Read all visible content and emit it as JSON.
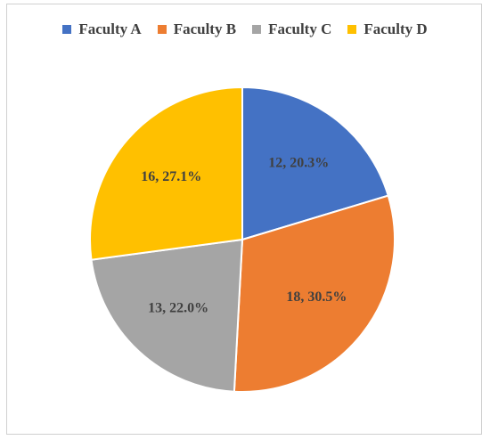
{
  "chart_data": {
    "type": "pie",
    "categories": [
      "Faculty A",
      "Faculty B",
      "Faculty C",
      "Faculty D"
    ],
    "values": [
      12,
      18,
      13,
      16
    ],
    "data_labels": [
      "12, 20.3%",
      "18, 30.5%",
      "13, 22.0%",
      "16, 27.1%"
    ],
    "colors": [
      "#4472C4",
      "#ED7D31",
      "#A5A5A5",
      "#FFC000"
    ],
    "start_angle_deg": 0,
    "direction": "clockwise",
    "legend_position": "top"
  }
}
